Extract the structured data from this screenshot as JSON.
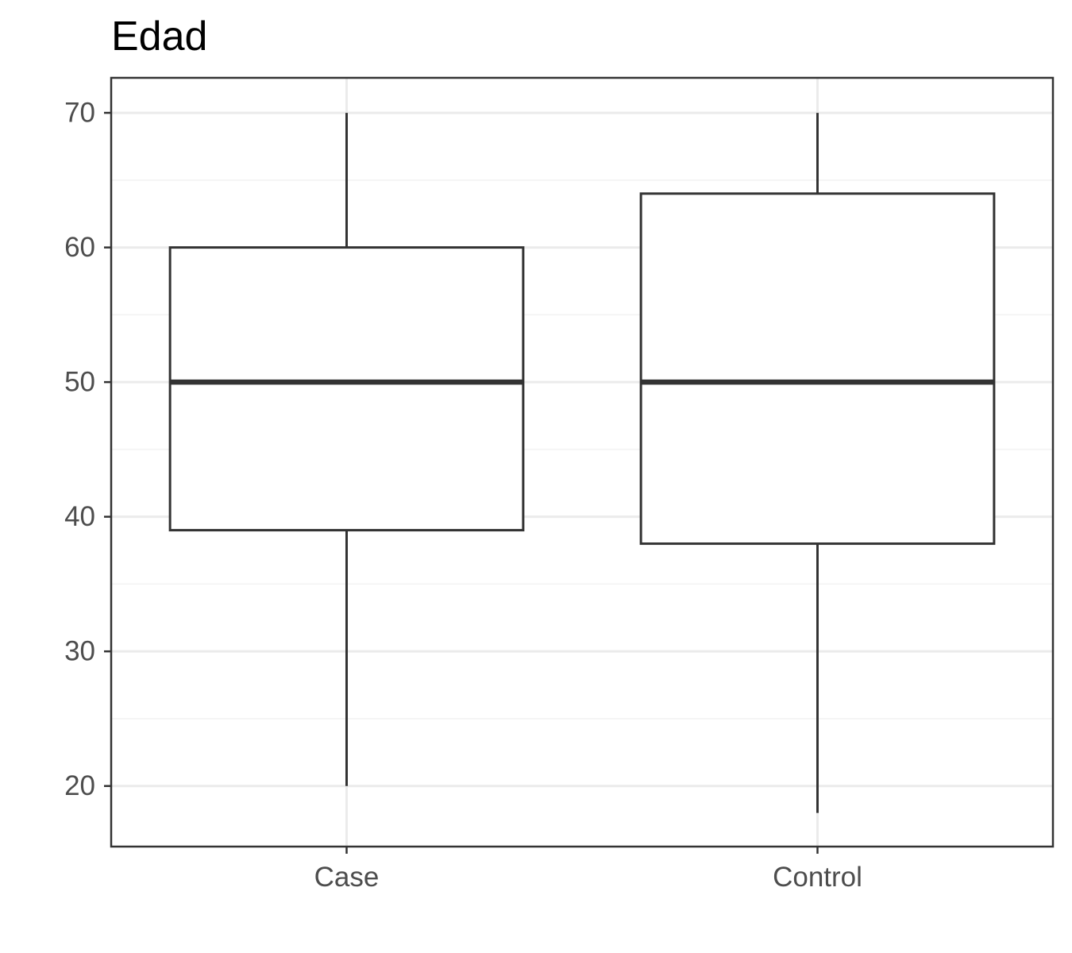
{
  "chart_data": {
    "type": "boxplot",
    "title": "Edad",
    "xlabel": "",
    "ylabel": "",
    "categories": [
      "Case",
      "Control"
    ],
    "boxes": [
      {
        "category": "Case",
        "min": 20,
        "q1": 39,
        "median": 50,
        "q3": 60,
        "max": 70
      },
      {
        "category": "Control",
        "min": 18,
        "q1": 38,
        "median": 50,
        "q3": 64,
        "max": 70
      }
    ],
    "ylim": [
      15.5,
      72.6
    ],
    "yticks": [
      20,
      30,
      40,
      50,
      60,
      70
    ],
    "grid": true,
    "legend": "none",
    "colors": {
      "box": "#333333",
      "grid_major": "#ebebeb",
      "grid_minor": "#f2f2f2",
      "panel_border": "#333333",
      "tick_text": "#4d4d4d"
    }
  }
}
